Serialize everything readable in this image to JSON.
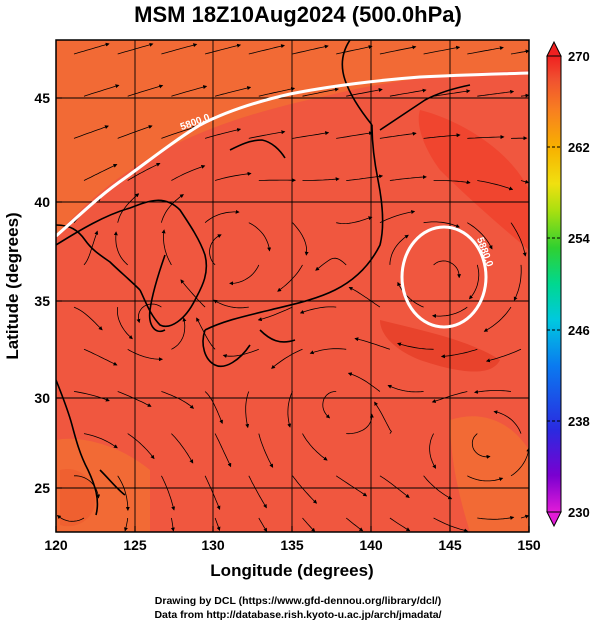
{
  "title": "MSM 18Z10Aug2024 (500.0hPa)",
  "xlabel": "Longitude (degrees)",
  "ylabel": "Latitude  (degrees)",
  "x_ticks": [
    "120",
    "125",
    "130",
    "135",
    "140",
    "145",
    "150"
  ],
  "y_ticks": [
    "25",
    "30",
    "35",
    "40",
    "45"
  ],
  "colorbar": {
    "ticks": [
      "270",
      "262",
      "254",
      "246",
      "238",
      "230"
    ],
    "min": 230,
    "max": 270,
    "colors": [
      "#e21bd8",
      "#7a00d0",
      "#2a2ae0",
      "#0a7af0",
      "#00c8e0",
      "#00d890",
      "#30d030",
      "#a8e010",
      "#f0e010",
      "#f8b000",
      "#f88020",
      "#f05030",
      "#f02020"
    ]
  },
  "contours": [
    {
      "label": "5800.0"
    },
    {
      "label": "5880.0"
    }
  ],
  "credits": {
    "line1": "Drawing by DCL (https://www.gfd-dennou.org/library/dcl/)",
    "line2": "Data from http://database.rish.kyoto-u.ac.jp/arch/jmadata/"
  },
  "colors": {
    "field_base": "#f0573f",
    "field_warm": "#f26a35",
    "field_hot": "#f0452f",
    "streamline": "#000000",
    "contour": "#ffffff"
  }
}
